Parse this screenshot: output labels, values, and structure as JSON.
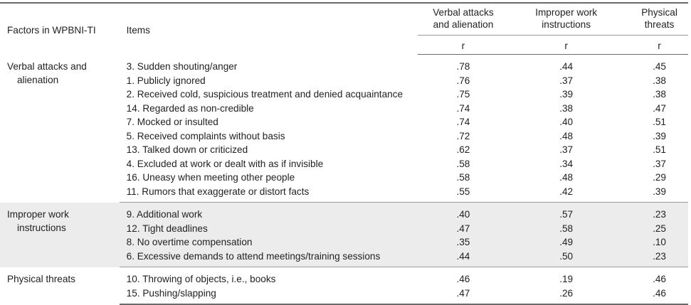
{
  "header": {
    "factors": "Factors in WPBNI-TI",
    "items": "Items",
    "col1_line1": "Verbal attacks",
    "col1_line2": "and alienation",
    "col2_line1": "Improper work",
    "col2_line2": "instructions",
    "col3_line1": "Physical",
    "col3_line2": "threats",
    "r1": "r",
    "r2": "r",
    "r3": "r"
  },
  "groups": [
    {
      "factor_line1": "Verbal attacks and",
      "factor_line2": "alienation",
      "rows": [
        {
          "item": "3. Sudden shouting/anger",
          "v1": ".78",
          "v2": ".44",
          "v3": ".45"
        },
        {
          "item": "1. Publicly ignored",
          "v1": ".76",
          "v2": ".37",
          "v3": ".38"
        },
        {
          "item": "2. Received cold, suspicious treatment and denied acquaintance",
          "v1": ".75",
          "v2": ".39",
          "v3": ".38"
        },
        {
          "item": "14. Regarded as non-credible",
          "v1": ".74",
          "v2": ".38",
          "v3": ".47"
        },
        {
          "item": "7. Mocked or insulted",
          "v1": ".74",
          "v2": ".40",
          "v3": ".51"
        },
        {
          "item": "5. Received complaints without basis",
          "v1": ".72",
          "v2": ".48",
          "v3": ".39"
        },
        {
          "item": "13. Talked down or criticized",
          "v1": ".62",
          "v2": ".37",
          "v3": ".51"
        },
        {
          "item": "4. Excluded at work or dealt with as if invisible",
          "v1": ".58",
          "v2": ".34",
          "v3": ".37"
        },
        {
          "item": "16. Uneasy when meeting other people",
          "v1": ".58",
          "v2": ".48",
          "v3": ".29"
        },
        {
          "item": "11. Rumors that exaggerate or distort facts",
          "v1": ".55",
          "v2": ".42",
          "v3": ".39"
        }
      ]
    },
    {
      "factor_line1": "Improper work",
      "factor_line2": "instructions",
      "rows": [
        {
          "item": "9. Additional work",
          "v1": ".40",
          "v2": ".57",
          "v3": ".23"
        },
        {
          "item": "12. Tight deadlines",
          "v1": ".47",
          "v2": ".58",
          "v3": ".25"
        },
        {
          "item": "8. No overtime compensation",
          "v1": ".35",
          "v2": ".49",
          "v3": ".10"
        },
        {
          "item": "6. Excessive demands to attend meetings/training sessions",
          "v1": ".44",
          "v2": ".50",
          "v3": ".23"
        }
      ]
    },
    {
      "factor_line1": "Physical threats",
      "factor_line2": "",
      "rows": [
        {
          "item": "10. Throwing of objects, i.e., books",
          "v1": ".46",
          "v2": ".19",
          "v3": ".46"
        },
        {
          "item": "15. Pushing/slapping",
          "v1": ".47",
          "v2": ".26",
          "v3": ".46"
        }
      ]
    }
  ]
}
